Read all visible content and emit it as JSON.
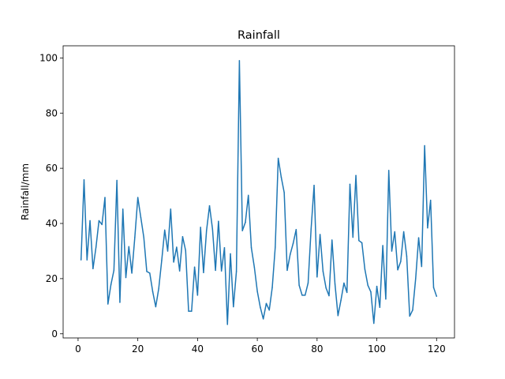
{
  "chart_data": {
    "type": "line",
    "title": "Rainfall",
    "xlabel": "",
    "ylabel": "Rainfall/mm",
    "xlim": [
      -5,
      126
    ],
    "ylim": [
      -1.5,
      104.4
    ],
    "xticks": [
      0,
      20,
      40,
      60,
      80,
      100,
      120
    ],
    "yticks": [
      0,
      20,
      40,
      60,
      80,
      100
    ],
    "grid": false,
    "line_color": "#1f77b4",
    "series": [
      {
        "x": [
          1,
          2,
          3,
          4,
          5,
          6,
          7,
          8,
          9,
          10,
          11,
          12,
          13,
          14,
          15,
          16,
          17,
          18,
          19,
          20,
          21,
          22,
          23,
          24,
          25,
          26,
          27,
          28,
          29,
          30,
          31,
          32,
          33,
          34,
          35,
          36,
          37,
          38,
          39,
          40,
          41,
          42,
          43,
          44,
          45,
          46,
          47,
          48,
          49,
          50,
          51,
          52,
          53,
          54,
          55,
          56,
          57,
          58,
          59,
          60,
          61,
          62,
          63,
          64,
          65,
          66,
          67,
          68,
          69,
          70,
          71,
          72,
          73,
          74,
          75,
          76,
          77,
          78,
          79,
          80,
          81,
          82,
          83,
          84,
          85,
          86,
          87,
          88,
          89,
          90,
          91,
          92,
          93,
          94,
          95,
          96,
          97,
          98,
          99,
          100,
          101,
          102,
          103,
          104,
          105,
          106,
          107,
          108,
          109,
          110,
          111,
          112,
          113,
          114,
          115,
          116,
          117,
          118,
          119,
          120
        ],
        "values": [
          26.8,
          55.8,
          26.8,
          41.0,
          23.6,
          31.4,
          41.0,
          39.6,
          49.4,
          10.8,
          17.8,
          23.0,
          55.6,
          11.4,
          45.2,
          20.4,
          31.6,
          22.0,
          35.0,
          49.4,
          42.2,
          35.0,
          22.6,
          22.0,
          15.2,
          9.8,
          16.4,
          26.6,
          37.6,
          30.0,
          45.2,
          26.0,
          31.4,
          22.8,
          35.2,
          30.2,
          8.2,
          8.2,
          24.2,
          14.0,
          38.6,
          22.2,
          37.4,
          46.4,
          38.0,
          23.0,
          40.8,
          22.8,
          31.2,
          3.4,
          29.0,
          9.8,
          22.6,
          99.0,
          37.4,
          40.4,
          50.2,
          31.2,
          24.2,
          15.4,
          9.6,
          5.4,
          11.0,
          8.6,
          16.8,
          31.4,
          63.6,
          56.8,
          51.2,
          23.0,
          28.8,
          32.8,
          37.8,
          17.6,
          14.0,
          14.0,
          18.4,
          38.0,
          53.8,
          20.6,
          36.0,
          22.6,
          16.6,
          13.8,
          34.0,
          18.0,
          6.6,
          12.2,
          18.4,
          15.0,
          54.2,
          35.0,
          57.4,
          33.8,
          33.0,
          23.4,
          17.6,
          15.2,
          3.8,
          17.2,
          9.6,
          32.0,
          12.6,
          59.2,
          30.0,
          37.0,
          23.2,
          26.2,
          37.0,
          28.2,
          6.4,
          8.6,
          20.0,
          34.8,
          24.4,
          68.2,
          38.4,
          48.4,
          16.8,
          13.6
        ]
      }
    ]
  }
}
